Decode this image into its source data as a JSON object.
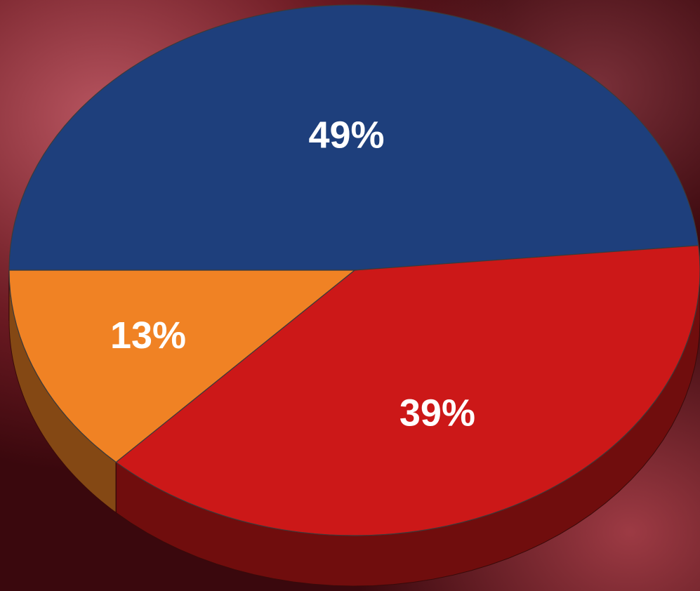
{
  "chart_data": {
    "type": "pie3d",
    "categories": [
      null,
      null,
      null
    ],
    "values": [
      49,
      39,
      13
    ],
    "value_labels": [
      "49%",
      "39%",
      "13%"
    ],
    "colors": [
      "#1e3f7c",
      "#cc1818",
      "#f08224"
    ]
  }
}
